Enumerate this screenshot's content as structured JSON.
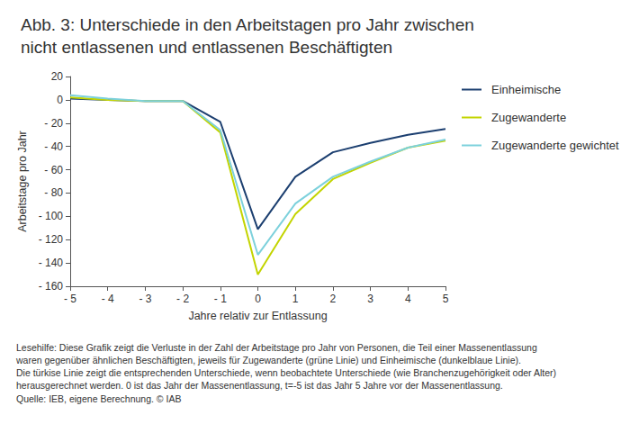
{
  "chart_data": {
    "type": "line",
    "title": "Abb. 3: Unterschiede in den Arbeitstagen pro Jahr zwischen\nnicht entlassenen und entlassenen Beschäftigten",
    "x_label": "Jahre relativ zur Entlassung",
    "y_label": "Arbeitstage pro Jahr",
    "x": [
      -5,
      -4,
      -3,
      -2,
      -1,
      0,
      1,
      2,
      3,
      4,
      5
    ],
    "series": [
      {
        "name": "Einheimische",
        "color": "#1c3f70",
        "values": [
          1,
          0,
          -1,
          -1,
          -19,
          -111,
          -66,
          -45,
          -37,
          -30,
          -25
        ]
      },
      {
        "name": "Zugewanderte",
        "color": "#c3d400",
        "values": [
          2,
          0,
          -1,
          -1,
          -28,
          -150,
          -98,
          -68,
          -54,
          -41,
          -35
        ]
      },
      {
        "name": "Zugewanderte gewichtet",
        "color": "#7dd1dc",
        "values": [
          4,
          1,
          -1,
          -1,
          -26,
          -133,
          -89,
          -66,
          -53,
          -41,
          -34
        ]
      }
    ],
    "xlim": [
      -5,
      5
    ],
    "xticks": [
      {
        "value": -5,
        "label": "- 5"
      },
      {
        "value": -4,
        "label": "- 4"
      },
      {
        "value": -3,
        "label": "- 3"
      },
      {
        "value": -2,
        "label": "- 2"
      },
      {
        "value": -1,
        "label": "- 1"
      },
      0,
      1,
      2,
      3,
      4,
      5
    ],
    "ylim": [
      -160,
      20
    ],
    "yticks": [
      {
        "value": -160,
        "label": "- 160"
      },
      {
        "value": -140,
        "label": "- 140"
      },
      {
        "value": -120,
        "label": "- 120"
      },
      {
        "value": -100,
        "label": "- 100"
      },
      {
        "value": -80,
        "label": "- 80"
      },
      {
        "value": -60,
        "label": "- 60"
      },
      {
        "value": -40,
        "label": "- 40"
      },
      {
        "value": -20,
        "label": "- 20"
      },
      0,
      20
    ],
    "grid": false,
    "legend": "right",
    "notes": [
      "Lesehilfe: Diese Grafik zeigt die Verluste in der Zahl der Arbeitstage pro Jahr von Personen, die Teil einer Massenentlassung",
      "waren gegenüber ähnlichen Beschäftigten, jeweils für Zugewanderte (grüne Linie) und Einheimische (dunkelblaue Linie).",
      "Die türkise Linie zeigt die entsprechenden Unterschiede, wenn beobachtete Unterschiede (wie Branchenzugehörigkeit oder Alter)",
      "herausgerechnet werden. 0 ist das Jahr der Massenentlassung, t=-5 ist das Jahr 5 Jahre vor der Massenentlassung."
    ],
    "source": "Quelle: IEB, eigene Berechnung. © IAB"
  }
}
